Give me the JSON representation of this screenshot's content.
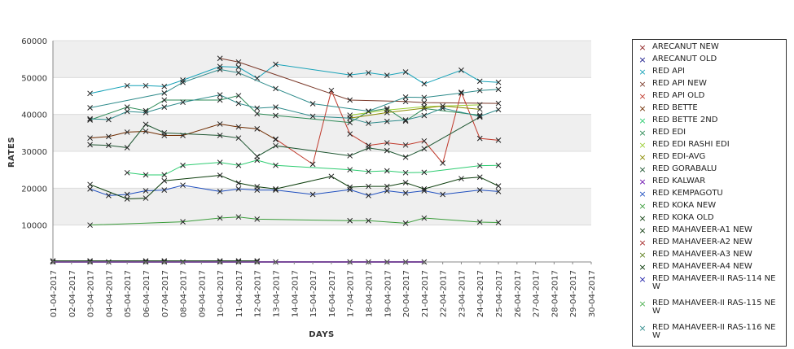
{
  "chart_data": {
    "type": "line",
    "title": "",
    "xlabel": "DAYS",
    "ylabel": "RATES",
    "ylim": [
      0,
      60000
    ],
    "yticks": [
      10000,
      20000,
      30000,
      40000,
      50000,
      60000
    ],
    "grid": true,
    "legend_position": "right",
    "x": [
      "01-04-2017",
      "02-04-2017",
      "03-04-2017",
      "04-04-2017",
      "05-04-2017",
      "06-04-2017",
      "07-04-2017",
      "08-04-2017",
      "09-04-2017",
      "10-04-2017",
      "11-04-2017",
      "12-04-2017",
      "13-04-2017",
      "14-04-2017",
      "15-04-2017",
      "16-04-2017",
      "17-04-2017",
      "18-04-2017",
      "19-04-2017",
      "20-04-2017",
      "21-04-2017",
      "22-04-2017",
      "23-04-2017",
      "24-04-2017",
      "25-04-2017",
      "26-04-2017",
      "27-04-2017",
      "28-04-2017",
      "29-04-2017",
      "30-04-2017"
    ],
    "series": [
      {
        "name": "ARECANUT NEW",
        "color": "#8b1a1a",
        "points": []
      },
      {
        "name": "ARECANUT OLD",
        "color": "#1a1a8b",
        "points": []
      },
      {
        "name": "RED API",
        "color": "#17a2b8",
        "points": [
          [
            2,
            45700
          ],
          [
            4,
            47800
          ],
          [
            5,
            47800
          ],
          [
            6,
            47600
          ],
          [
            7,
            49300
          ],
          [
            9,
            53000
          ],
          [
            10,
            52800
          ],
          [
            11,
            49800
          ],
          [
            12,
            53600
          ],
          [
            16,
            50700
          ],
          [
            17,
            51300
          ],
          [
            18,
            50600
          ],
          [
            19,
            51500
          ],
          [
            20,
            48300
          ],
          [
            22,
            52000
          ],
          [
            23,
            49000
          ],
          [
            24,
            48700
          ]
        ]
      },
      {
        "name": "RED API NEW",
        "color": "#7b3a2a",
        "points": [
          [
            9,
            55200
          ],
          [
            10,
            54200
          ],
          [
            16,
            43900
          ],
          [
            19,
            43500
          ],
          [
            20,
            43200
          ],
          [
            24,
            43000
          ]
        ]
      },
      {
        "name": "RED API OLD",
        "color": "#c0392b",
        "points": [
          [
            12,
            33300
          ],
          [
            14,
            26500
          ],
          [
            15,
            46500
          ],
          [
            16,
            34700
          ],
          [
            17,
            31600
          ],
          [
            18,
            32300
          ],
          [
            19,
            31700
          ],
          [
            20,
            32800
          ],
          [
            21,
            26800
          ],
          [
            22,
            46000
          ],
          [
            23,
            33500
          ],
          [
            24,
            33000
          ]
        ]
      },
      {
        "name": "RED BETTE",
        "color": "#6e2c00",
        "points": [
          [
            2,
            33600
          ],
          [
            3,
            34000
          ],
          [
            4,
            35200
          ],
          [
            5,
            35400
          ],
          [
            6,
            34300
          ],
          [
            7,
            34300
          ],
          [
            9,
            37400
          ],
          [
            10,
            36600
          ],
          [
            11,
            36100
          ],
          [
            12,
            33200
          ]
        ]
      },
      {
        "name": "RED BETTE 2ND",
        "color": "#2ecc71",
        "points": [
          [
            4,
            24200
          ],
          [
            5,
            23600
          ],
          [
            6,
            23600
          ],
          [
            7,
            26200
          ],
          [
            9,
            27000
          ],
          [
            10,
            26200
          ],
          [
            11,
            27600
          ],
          [
            12,
            26200
          ],
          [
            16,
            25000
          ],
          [
            17,
            24500
          ],
          [
            18,
            24700
          ],
          [
            19,
            24200
          ],
          [
            20,
            24300
          ],
          [
            23,
            26100
          ],
          [
            24,
            26200
          ]
        ]
      },
      {
        "name": "RED EDI",
        "color": "#2e8b57",
        "points": [
          [
            2,
            38500
          ],
          [
            4,
            42000
          ],
          [
            5,
            41000
          ],
          [
            6,
            43900
          ],
          [
            9,
            43900
          ],
          [
            10,
            45100
          ],
          [
            11,
            40200
          ],
          [
            12,
            39700
          ],
          [
            16,
            37800
          ],
          [
            17,
            40800
          ],
          [
            18,
            41600
          ],
          [
            19,
            38200
          ],
          [
            20,
            41600
          ],
          [
            23,
            39800
          ]
        ]
      },
      {
        "name": "RED EDI RASHI EDI",
        "color": "#9acd32",
        "points": [
          [
            16,
            39800
          ],
          [
            18,
            41200
          ],
          [
            20,
            42100
          ],
          [
            23,
            42600
          ]
        ]
      },
      {
        "name": "RED EDI-AVG",
        "color": "#8b8b00",
        "points": [
          [
            16,
            39000
          ],
          [
            18,
            40500
          ],
          [
            21,
            42300
          ],
          [
            23,
            41400
          ]
        ]
      },
      {
        "name": "RED GORABALU",
        "color": "#1e5631",
        "points": [
          [
            2,
            31800
          ],
          [
            3,
            31600
          ],
          [
            4,
            31000
          ],
          [
            5,
            37300
          ],
          [
            6,
            35000
          ],
          [
            9,
            34300
          ],
          [
            10,
            33600
          ],
          [
            11,
            28600
          ],
          [
            12,
            31500
          ],
          [
            16,
            28800
          ],
          [
            17,
            30900
          ],
          [
            18,
            30200
          ],
          [
            19,
            28400
          ],
          [
            20,
            30700
          ],
          [
            23,
            39300
          ]
        ]
      },
      {
        "name": "RED KALWAR",
        "color": "#6a0dad",
        "points": [
          [
            0,
            0
          ],
          [
            2,
            0
          ],
          [
            3,
            0
          ],
          [
            5,
            0
          ],
          [
            6,
            0
          ],
          [
            7,
            0
          ],
          [
            9,
            0
          ],
          [
            10,
            0
          ],
          [
            11,
            0
          ],
          [
            12,
            0
          ],
          [
            16,
            0
          ],
          [
            17,
            0
          ],
          [
            18,
            0
          ],
          [
            19,
            0
          ],
          [
            20,
            0
          ]
        ]
      },
      {
        "name": "RED KEMPAGOTU",
        "color": "#1f4fbf",
        "points": [
          [
            2,
            19800
          ],
          [
            3,
            18000
          ],
          [
            4,
            18300
          ],
          [
            5,
            19300
          ],
          [
            6,
            19500
          ],
          [
            7,
            20800
          ],
          [
            9,
            19100
          ],
          [
            10,
            19800
          ],
          [
            11,
            19500
          ],
          [
            12,
            19500
          ],
          [
            14,
            18300
          ],
          [
            16,
            19600
          ],
          [
            17,
            18000
          ],
          [
            18,
            19300
          ],
          [
            19,
            18700
          ],
          [
            20,
            19300
          ],
          [
            21,
            18300
          ],
          [
            23,
            19500
          ],
          [
            24,
            19100
          ]
        ]
      },
      {
        "name": "RED KOKA NEW",
        "color": "#3c9d3c",
        "points": [
          [
            2,
            10000
          ],
          [
            7,
            10900
          ],
          [
            9,
            11900
          ],
          [
            10,
            12200
          ],
          [
            11,
            11600
          ],
          [
            16,
            11200
          ],
          [
            17,
            11200
          ],
          [
            19,
            10500
          ],
          [
            20,
            11900
          ],
          [
            23,
            10800
          ],
          [
            24,
            10700
          ]
        ]
      },
      {
        "name": "RED KOKA OLD",
        "color": "#0b3d0b",
        "points": [
          [
            2,
            21000
          ],
          [
            4,
            17100
          ],
          [
            5,
            17300
          ],
          [
            6,
            22000
          ],
          [
            9,
            23500
          ],
          [
            10,
            21400
          ],
          [
            11,
            20400
          ],
          [
            12,
            19800
          ],
          [
            15,
            23200
          ],
          [
            16,
            20300
          ],
          [
            17,
            20500
          ],
          [
            18,
            20500
          ],
          [
            19,
            21500
          ],
          [
            20,
            19800
          ],
          [
            22,
            22600
          ],
          [
            23,
            23000
          ],
          [
            24,
            20600
          ]
        ]
      },
      {
        "name": "RED MAHAVEER-A1 NEW",
        "color": "#154015",
        "points": [
          [
            0,
            300
          ],
          [
            2,
            300
          ],
          [
            5,
            300
          ],
          [
            6,
            300
          ],
          [
            9,
            300
          ],
          [
            10,
            300
          ],
          [
            11,
            300
          ]
        ]
      },
      {
        "name": "RED MAHAVEER-A2 NEW",
        "color": "#a52a2a",
        "points": []
      },
      {
        "name": "RED MAHAVEER-A3 NEW",
        "color": "#5a7d1a",
        "points": []
      },
      {
        "name": "RED MAHAVEER-A4 NEW",
        "color": "#003300",
        "points": []
      },
      {
        "name": "RED MAHAVEER-II RAS-114 NEW",
        "color": "#1a1aa6",
        "points": []
      },
      {
        "name": "RED MAHAVEER-II RAS-115 NEW",
        "color": "#4caf50",
        "points": []
      },
      {
        "name": "RED MAHAVEER-II RAS-116 NEW",
        "color": "#2e8b8b",
        "points": [
          [
            2,
            38800
          ],
          [
            3,
            38600
          ],
          [
            4,
            40800
          ],
          [
            5,
            40500
          ],
          [
            6,
            42000
          ],
          [
            7,
            43300
          ],
          [
            9,
            45300
          ],
          [
            10,
            43000
          ],
          [
            11,
            41700
          ],
          [
            12,
            42000
          ],
          [
            14,
            39500
          ],
          [
            16,
            39000
          ],
          [
            17,
            37600
          ],
          [
            18,
            38100
          ],
          [
            19,
            38500
          ],
          [
            20,
            39700
          ],
          [
            21,
            41700
          ],
          [
            23,
            39500
          ],
          [
            24,
            41300
          ],
          [
            2,
            41800
          ],
          [
            6,
            45800
          ],
          [
            7,
            48700
          ],
          [
            9,
            52200
          ],
          [
            10,
            51300
          ],
          [
            12,
            47000
          ],
          [
            14,
            42900
          ],
          [
            17,
            40900
          ],
          [
            19,
            44700
          ],
          [
            20,
            44600
          ],
          [
            22,
            45800
          ],
          [
            23,
            46500
          ],
          [
            24,
            46800
          ]
        ]
      }
    ]
  }
}
